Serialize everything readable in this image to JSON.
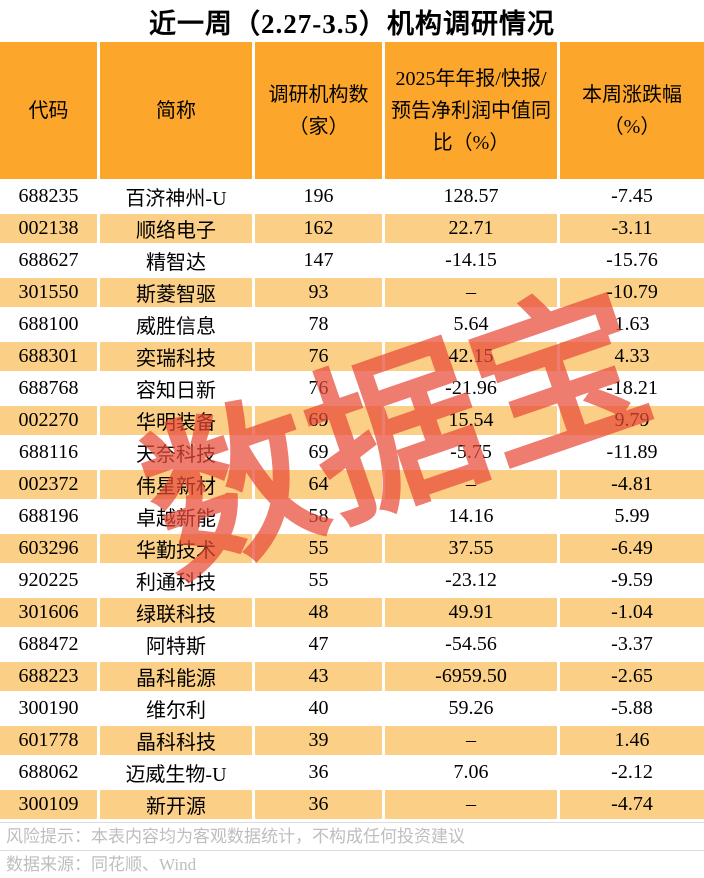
{
  "chart_data": {
    "type": "table",
    "title": "近一周（2.27-3.5）机构调研情况",
    "columns": [
      "代码",
      "简称",
      "调研机构数（家）",
      "2025年年报/快报/预告净利润中值同比（%）",
      "本周涨跌幅（%）"
    ],
    "rows": [
      [
        "688235",
        "百济神州-U",
        "196",
        "128.57",
        "-7.45"
      ],
      [
        "002138",
        "顺络电子",
        "162",
        "22.71",
        "-3.11"
      ],
      [
        "688627",
        "精智达",
        "147",
        "-14.15",
        "-15.76"
      ],
      [
        "301550",
        "斯菱智驱",
        "93",
        "–",
        "-10.79"
      ],
      [
        "688100",
        "威胜信息",
        "78",
        "5.64",
        "1.63"
      ],
      [
        "688301",
        "奕瑞科技",
        "76",
        "42.15",
        "4.33"
      ],
      [
        "688768",
        "容知日新",
        "76",
        "-21.96",
        "-18.21"
      ],
      [
        "002270",
        "华明装备",
        "69",
        "15.54",
        "9.79"
      ],
      [
        "688116",
        "天奈科技",
        "69",
        "-5.75",
        "-11.89"
      ],
      [
        "002372",
        "伟星新材",
        "64",
        "–",
        "-4.81"
      ],
      [
        "688196",
        "卓越新能",
        "58",
        "14.16",
        "5.99"
      ],
      [
        "603296",
        "华勤技术",
        "55",
        "37.55",
        "-6.49"
      ],
      [
        "920225",
        "利通科技",
        "55",
        "-23.12",
        "-9.59"
      ],
      [
        "301606",
        "绿联科技",
        "48",
        "49.91",
        "-1.04"
      ],
      [
        "688472",
        "阿特斯",
        "47",
        "-54.56",
        "-3.37"
      ],
      [
        "688223",
        "晶科能源",
        "43",
        "-6959.50",
        "-2.65"
      ],
      [
        "300190",
        "维尔利",
        "40",
        "59.26",
        "-5.88"
      ],
      [
        "601778",
        "晶科科技",
        "39",
        "–",
        "1.46"
      ],
      [
        "688062",
        "迈威生物-U",
        "36",
        "7.06",
        "-2.12"
      ],
      [
        "300109",
        "新开源",
        "36",
        "–",
        "-4.74"
      ]
    ],
    "watermark": "数据宝",
    "footnotes": [
      "风险提示：本表内容均为客观数据统计，不构成任何投资建议",
      "数据来源：同花顺、Wind"
    ],
    "layout_hints": {
      "header_bg": "#FCA62B",
      "row_alt_bg": "#FBD086",
      "row_bg": "#FFFFFF",
      "watermark_color": "#E84B38",
      "footer_text_color": "#BEBEBE",
      "grid": "white 3px separators, alternating row shading"
    }
  }
}
